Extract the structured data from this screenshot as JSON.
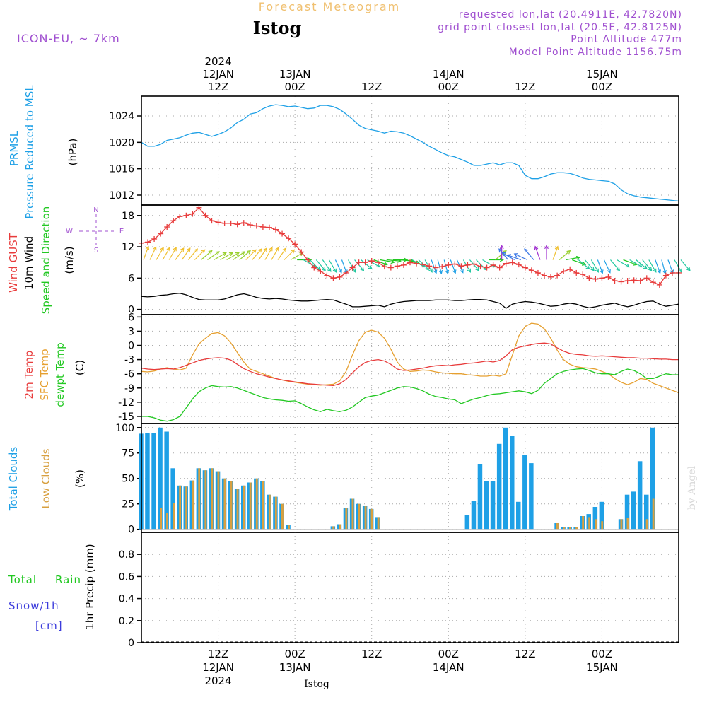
{
  "header": {
    "title": "Forecast Meteogram",
    "location": "Istog",
    "model": "ICON-EU, ~ 7km",
    "requested": "requested lon,lat (20.4911E, 42.7820N)",
    "grid_point": "grid point closest lon,lat (20.5E, 42.8125N)",
    "point_altitude": "Point Altitude 477m",
    "model_altitude": "Model Point Altitude 1156.75m",
    "footer_location": "Istog",
    "watermark": "by Angel"
  },
  "colors": {
    "pressure": "#1ea0e6",
    "gust": "#e83c3c",
    "wind10m": "#000000",
    "t2m": "#e83c3c",
    "sfc": "#e6a030",
    "dewpt": "#22c822",
    "total_clouds": "#1ea0e6",
    "low_clouds": "#d8a040",
    "rain": "#22c822",
    "snow": "#3c3cdc",
    "meta": "#a050d0"
  },
  "time_axis": {
    "hours": [
      0,
      84
    ],
    "top_ticks": [
      {
        "h": 12,
        "lines": [
          "2024",
          "12JAN",
          "12Z"
        ]
      },
      {
        "h": 24,
        "lines": [
          "13JAN",
          "00Z"
        ]
      },
      {
        "h": 36,
        "lines": [
          "12Z"
        ]
      },
      {
        "h": 48,
        "lines": [
          "14JAN",
          "00Z"
        ]
      },
      {
        "h": 60,
        "lines": [
          "12Z"
        ]
      },
      {
        "h": 72,
        "lines": [
          "15JAN",
          "00Z"
        ]
      }
    ],
    "bottom_ticks": [
      {
        "h": 12,
        "lines": [
          "12Z",
          "12JAN",
          "2024"
        ]
      },
      {
        "h": 24,
        "lines": [
          "00Z",
          "13JAN"
        ]
      },
      {
        "h": 36,
        "lines": [
          "12Z"
        ]
      },
      {
        "h": 48,
        "lines": [
          "00Z",
          "14JAN"
        ]
      },
      {
        "h": 60,
        "lines": [
          "12Z"
        ]
      },
      {
        "h": 72,
        "lines": [
          "00Z",
          "15JAN"
        ]
      }
    ]
  },
  "labels": {
    "pressure": {
      "line1": "PRMSL",
      "line2": "Pressure Reduced to MSL",
      "unit": "(hPa)"
    },
    "wind": {
      "gust": "Wind GUST",
      "w10": "10m Wind",
      "dir": "Speed and Direction",
      "unit": "(m/s)"
    },
    "compass": {
      "n": "N",
      "s": "S",
      "w": "W",
      "e": "E"
    },
    "temp": {
      "t2m": "2m Temp",
      "sfc": "SFC Temp",
      "dew": "dewpt Temp",
      "unit": "(C)"
    },
    "clouds": {
      "total": "Total Clouds",
      "low": "Low Clouds",
      "unit": "(%)"
    },
    "precip": {
      "total": "Total",
      "rain": "Rain",
      "snow": "Snow/1h",
      "cm": "[cm]",
      "unit": "1hr Precip (mm)"
    }
  },
  "chart_data": [
    {
      "type": "line",
      "name": "pressure",
      "ylim": [
        1010.5,
        1027
      ],
      "yticks": [
        "1012",
        "1016",
        "1020",
        "1024"
      ],
      "x": [
        0,
        1,
        2,
        3,
        4,
        5,
        6,
        7,
        8,
        9,
        10,
        11,
        12,
        13,
        14,
        15,
        16,
        17,
        18,
        19,
        20,
        21,
        22,
        23,
        24,
        25,
        26,
        27,
        28,
        29,
        30,
        31,
        32,
        33,
        34,
        35,
        36,
        37,
        38,
        39,
        40,
        41,
        42,
        43,
        44,
        45,
        46,
        47,
        48,
        49,
        50,
        51,
        52,
        53,
        54,
        55,
        56,
        57,
        58,
        59,
        60,
        61,
        62,
        63,
        64,
        65,
        66,
        67,
        68,
        69,
        70,
        71,
        72,
        73,
        74,
        75,
        76,
        77,
        78,
        79,
        80,
        81,
        82,
        83,
        84
      ],
      "values": [
        1020.0,
        1019.4,
        1019.4,
        1019.7,
        1020.3,
        1020.5,
        1020.7,
        1021.1,
        1021.4,
        1021.5,
        1021.2,
        1020.9,
        1021.2,
        1021.6,
        1022.2,
        1023.0,
        1023.5,
        1024.3,
        1024.5,
        1025.1,
        1025.5,
        1025.7,
        1025.6,
        1025.4,
        1025.5,
        1025.3,
        1025.1,
        1025.2,
        1025.6,
        1025.6,
        1025.4,
        1025.0,
        1024.3,
        1023.5,
        1022.6,
        1022.1,
        1021.9,
        1021.7,
        1021.4,
        1021.7,
        1021.6,
        1021.4,
        1021.0,
        1020.5,
        1020.0,
        1019.4,
        1018.9,
        1018.4,
        1018.0,
        1017.8,
        1017.4,
        1017.0,
        1016.5,
        1016.5,
        1016.7,
        1016.9,
        1016.6,
        1016.9,
        1016.9,
        1016.5,
        1015.0,
        1014.5,
        1014.5,
        1014.8,
        1015.2,
        1015.4,
        1015.4,
        1015.3,
        1015.0,
        1014.6,
        1014.4,
        1014.3,
        1014.2,
        1014.1,
        1013.7,
        1012.8,
        1012.2,
        1011.9,
        1011.7,
        1011.6,
        1011.5,
        1011.4,
        1011.3,
        1011.2,
        1011.1
      ]
    },
    {
      "type": "line",
      "name": "wind",
      "ylim": [
        -1,
        20
      ],
      "yticks": [
        "0",
        "6",
        "12",
        "18"
      ],
      "gust": [
        12.7,
        12.9,
        13.5,
        14.5,
        15.8,
        17.0,
        17.8,
        18.0,
        18.3,
        19.5,
        18.0,
        17.0,
        16.7,
        16.5,
        16.5,
        16.3,
        16.6,
        16.2,
        16.0,
        15.8,
        15.7,
        15.3,
        14.5,
        13.6,
        12.5,
        11.0,
        9.5,
        8.0,
        7.3,
        6.5,
        6.0,
        6.2,
        7.0,
        8.0,
        9.0,
        9.0,
        9.3,
        9.0,
        8.2,
        8.0,
        8.3,
        8.5,
        9.0,
        8.8,
        8.6,
        8.3,
        8.0,
        8.2,
        8.5,
        8.7,
        8.3,
        8.5,
        8.7,
        8.2,
        8.0,
        8.5,
        8.0,
        8.8,
        9.0,
        8.6,
        8.0,
        7.5,
        7.0,
        6.5,
        6.2,
        6.5,
        7.3,
        7.7,
        7.0,
        6.7,
        6.0,
        5.8,
        6.0,
        6.2,
        5.5,
        5.3,
        5.5,
        5.6,
        5.5,
        6.0,
        5.2,
        4.7,
        6.5,
        7.0,
        7.0
      ],
      "wind10m": [
        2.5,
        2.4,
        2.5,
        2.7,
        2.8,
        3.0,
        3.1,
        2.8,
        2.3,
        1.9,
        1.8,
        1.8,
        1.8,
        2.0,
        2.4,
        2.8,
        3.0,
        2.7,
        2.3,
        2.1,
        2.0,
        2.1,
        2.0,
        1.8,
        1.7,
        1.6,
        1.6,
        1.7,
        1.8,
        1.9,
        1.8,
        1.4,
        1.0,
        0.5,
        0.5,
        0.6,
        0.7,
        0.8,
        0.5,
        1.0,
        1.3,
        1.5,
        1.6,
        1.7,
        1.7,
        1.7,
        1.8,
        1.8,
        1.8,
        1.7,
        1.7,
        1.8,
        1.9,
        1.9,
        1.8,
        1.5,
        1.2,
        0.2,
        1.0,
        1.3,
        1.5,
        1.4,
        1.2,
        0.9,
        0.6,
        0.7,
        1.0,
        1.2,
        1.0,
        0.6,
        0.3,
        0.5,
        0.8,
        1.0,
        1.2,
        0.8,
        0.5,
        0.8,
        1.2,
        1.5,
        1.6,
        1.0,
        0.6,
        0.8,
        1.0
      ],
      "arrows": {
        "speed_level": [
          9.5,
          9.5,
          9.5,
          9.5,
          9.5,
          9.5,
          9.5,
          9.5,
          9.5,
          9.5,
          9.5,
          9.5,
          9.5,
          9.5,
          9.5,
          9.5,
          9.5,
          9.5,
          9.5,
          9.5,
          9.5,
          9.5,
          9.5,
          9.5,
          9.5,
          9.5,
          9.5,
          9.5,
          9.5,
          9.5,
          9.5,
          9.5,
          9.5,
          9.5,
          9.5,
          9.5,
          9.5,
          9.5,
          9.5,
          9.5,
          9.5,
          9.5,
          9.5,
          9.5,
          9.5,
          9.5,
          9.5,
          9.5,
          9.5,
          9.5,
          9.5,
          9.5,
          9.5,
          9.5,
          9.5,
          9.5,
          9.5,
          9.5,
          9.5,
          9.5,
          9.5,
          9.5,
          9.5,
          9.5,
          9.5,
          9.5,
          9.5,
          9.5,
          9.5,
          9.5,
          9.5,
          9.5,
          9.5,
          9.5,
          9.5,
          9.5,
          9.5,
          9.5,
          9.5,
          9.5,
          9.5,
          9.5,
          9.5,
          9.5,
          9.5
        ],
        "direction_deg": [
          200,
          205,
          210,
          210,
          210,
          215,
          215,
          220,
          225,
          230,
          235,
          240,
          240,
          240,
          235,
          230,
          225,
          220,
          215,
          210,
          210,
          215,
          225,
          240,
          270,
          300,
          315,
          320,
          325,
          330,
          335,
          340,
          330,
          320,
          310,
          300,
          290,
          280,
          275,
          270,
          275,
          285,
          300,
          315,
          330,
          340,
          345,
          345,
          340,
          335,
          330,
          320,
          315,
          300,
          270,
          230,
          180,
          140,
          120,
          110,
          115,
          140,
          160,
          180,
          200,
          230,
          260,
          290,
          310,
          320,
          330,
          340,
          335,
          320,
          300,
          290,
          300,
          310,
          320,
          330,
          340,
          345,
          340,
          330,
          320
        ]
      }
    },
    {
      "type": "line",
      "name": "temperature",
      "ylim": [
        -16.5,
        6.5
      ],
      "yticks": [
        "-15",
        "-12",
        "-9",
        "-6",
        "-3",
        "0",
        "3",
        "6"
      ],
      "t2m": [
        -4.8,
        -5.0,
        -5.1,
        -5.0,
        -4.9,
        -5.0,
        -4.7,
        -4.2,
        -3.7,
        -3.2,
        -2.9,
        -2.7,
        -2.6,
        -2.7,
        -3.1,
        -4.0,
        -4.9,
        -5.5,
        -6.0,
        -6.3,
        -6.7,
        -7.0,
        -7.3,
        -7.5,
        -7.7,
        -7.9,
        -8.1,
        -8.2,
        -8.3,
        -8.4,
        -8.5,
        -8.1,
        -7.2,
        -5.8,
        -4.5,
        -3.6,
        -3.2,
        -3.0,
        -3.3,
        -4.0,
        -5.0,
        -5.3,
        -5.2,
        -5.0,
        -4.8,
        -4.5,
        -4.3,
        -4.2,
        -4.3,
        -4.1,
        -4.0,
        -3.8,
        -3.7,
        -3.5,
        -3.3,
        -3.5,
        -3.2,
        -2.2,
        -0.9,
        -0.4,
        -0.1,
        0.2,
        0.4,
        0.5,
        0.3,
        -0.5,
        -1.2,
        -1.7,
        -1.9,
        -2.0,
        -2.2,
        -2.3,
        -2.2,
        -2.3,
        -2.4,
        -2.5,
        -2.6,
        -2.6,
        -2.7,
        -2.7,
        -2.8,
        -2.9,
        -2.9,
        -3.0,
        -3.0
      ],
      "sfc": [
        -5.5,
        -5.6,
        -5.4,
        -5.0,
        -4.7,
        -5.0,
        -5.2,
        -4.8,
        -2.0,
        0.3,
        1.5,
        2.5,
        2.7,
        2.0,
        0.5,
        -1.5,
        -3.5,
        -5.0,
        -5.5,
        -6.0,
        -6.5,
        -7.0,
        -7.3,
        -7.6,
        -7.8,
        -8.0,
        -8.2,
        -8.3,
        -8.4,
        -8.3,
        -8.2,
        -7.5,
        -5.5,
        -2.0,
        1.0,
        2.8,
        3.2,
        2.8,
        1.5,
        -0.8,
        -3.5,
        -5.0,
        -5.5,
        -5.4,
        -5.2,
        -5.3,
        -5.6,
        -5.8,
        -5.9,
        -6.0,
        -6.0,
        -6.2,
        -6.3,
        -6.5,
        -6.5,
        -6.3,
        -6.5,
        -6.0,
        -2.0,
        2.0,
        4.0,
        4.7,
        4.5,
        3.5,
        1.5,
        -1.0,
        -3.0,
        -4.0,
        -4.5,
        -4.7,
        -4.8,
        -5.0,
        -5.5,
        -6.0,
        -7.0,
        -7.8,
        -8.3,
        -7.8,
        -7.0,
        -7.2,
        -8.0,
        -8.5,
        -9.0,
        -9.5,
        -10.0
      ],
      "dewpt": [
        -15.0,
        -15.0,
        -15.3,
        -15.8,
        -16.0,
        -15.7,
        -15.0,
        -13.2,
        -11.3,
        -9.8,
        -9.0,
        -8.5,
        -8.7,
        -8.8,
        -8.7,
        -9.0,
        -9.5,
        -10.0,
        -10.5,
        -11.0,
        -11.3,
        -11.5,
        -11.6,
        -11.8,
        -11.7,
        -12.3,
        -13.0,
        -13.6,
        -14.0,
        -13.5,
        -13.8,
        -14.0,
        -13.7,
        -13.0,
        -12.0,
        -11.0,
        -10.7,
        -10.5,
        -10.0,
        -9.5,
        -9.0,
        -8.7,
        -8.8,
        -9.1,
        -9.6,
        -10.3,
        -10.8,
        -11.0,
        -11.3,
        -11.5,
        -12.3,
        -11.8,
        -11.3,
        -11.0,
        -10.6,
        -10.3,
        -10.2,
        -10.0,
        -9.8,
        -9.6,
        -9.8,
        -10.2,
        -9.5,
        -8.0,
        -7.0,
        -6.0,
        -5.5,
        -5.2,
        -5.0,
        -4.9,
        -5.3,
        -5.8,
        -6.0,
        -6.0,
        -6.2,
        -5.5,
        -5.0,
        -5.3,
        -6.0,
        -7.0,
        -7.0,
        -6.5,
        -6.0,
        -6.2,
        -6.2
      ]
    },
    {
      "type": "bar",
      "name": "clouds",
      "ylim": [
        -3,
        104
      ],
      "yticks": [
        "0",
        "25",
        "50",
        "75",
        "100"
      ],
      "total": [
        94,
        95,
        95,
        100,
        96,
        60,
        43,
        42,
        48,
        60,
        58,
        60,
        57,
        50,
        47,
        40,
        43,
        46,
        50,
        47,
        34,
        32,
        25,
        4,
        0,
        0,
        0,
        0,
        0,
        0,
        3,
        5,
        21,
        30,
        25,
        23,
        20,
        12,
        0,
        0,
        0,
        0,
        0,
        0,
        0,
        0,
        0,
        0,
        0,
        0,
        0,
        14,
        28,
        64,
        47,
        47,
        84,
        100,
        92,
        27,
        73,
        65,
        0,
        0,
        0,
        6,
        2,
        2,
        2,
        13,
        15,
        22,
        27,
        0,
        0,
        10,
        34,
        37,
        67,
        34,
        100
      ],
      "low": [
        0,
        0,
        0,
        21,
        16,
        26,
        43,
        42,
        48,
        60,
        58,
        60,
        57,
        50,
        47,
        40,
        43,
        46,
        50,
        47,
        34,
        32,
        25,
        4,
        0,
        0,
        0,
        0,
        0,
        0,
        3,
        5,
        21,
        30,
        25,
        23,
        20,
        12,
        0,
        0,
        0,
        0,
        0,
        0,
        0,
        0,
        0,
        0,
        0,
        0,
        0,
        0,
        0,
        0,
        0,
        0,
        0,
        0,
        0,
        0,
        0,
        0,
        0,
        0,
        0,
        6,
        2,
        2,
        2,
        13,
        12,
        10,
        8,
        0,
        0,
        10,
        11,
        0,
        0,
        10,
        30
      ]
    },
    {
      "type": "bar",
      "name": "precip",
      "ylim": [
        0,
        1.0
      ],
      "yticks": [
        "0",
        "0.2",
        "0.4",
        "0.6",
        "0.8"
      ],
      "rain": [],
      "snow": []
    }
  ]
}
